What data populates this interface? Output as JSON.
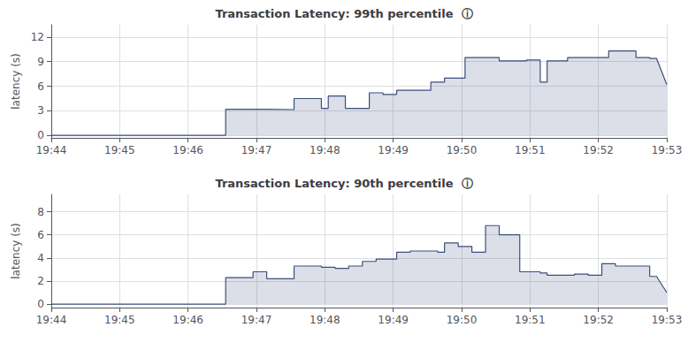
{
  "chart_data": [
    {
      "type": "area",
      "title": "Transaction Latency: 99th percentile  ⓘ",
      "ylabel": "latency (s)",
      "color": "#3b4f7c",
      "grid": true,
      "xlim": [
        0,
        9
      ],
      "xticks": [
        {
          "value": 0,
          "label": "19:44"
        },
        {
          "value": 1,
          "label": "19:45"
        },
        {
          "value": 2,
          "label": "19:46"
        },
        {
          "value": 3,
          "label": "19:47"
        },
        {
          "value": 4,
          "label": "19:48"
        },
        {
          "value": 5,
          "label": "19:49"
        },
        {
          "value": 6,
          "label": "19:50"
        },
        {
          "value": 7,
          "label": "19:51"
        },
        {
          "value": 8,
          "label": "19:52"
        },
        {
          "value": 9,
          "label": "19:53"
        }
      ],
      "ylim": [
        -0.3,
        13.5
      ],
      "yticks": [
        0,
        3,
        6,
        9,
        12
      ],
      "x": [
        0.0,
        1.0,
        2.0,
        2.0,
        2.55,
        2.55,
        3.0,
        3.0,
        3.15,
        3.15,
        3.55,
        3.55,
        3.75,
        3.75,
        3.95,
        3.95,
        4.05,
        4.05,
        4.15,
        4.15,
        4.3,
        4.3,
        4.55,
        4.55,
        4.65,
        4.65,
        4.75,
        4.75,
        4.85,
        4.85,
        5.05,
        5.05,
        5.15,
        5.15,
        5.55,
        5.55,
        5.75,
        5.75,
        5.9,
        5.9,
        6.05,
        6.05,
        6.2,
        6.2,
        6.55,
        6.55,
        6.75,
        6.75,
        6.85,
        6.85,
        6.95,
        6.95,
        7.15,
        7.15,
        7.25,
        7.25,
        7.45,
        7.45,
        7.55,
        7.55,
        7.65,
        7.65,
        7.75,
        7.75,
        7.85,
        7.85,
        8.05,
        8.05,
        8.15,
        8.15,
        8.25,
        8.25,
        8.55,
        8.55,
        8.75,
        8.75,
        8.85,
        8.85,
        9.0
      ],
      "values": [
        0.0,
        0.0,
        0.0,
        0.0,
        0.0,
        3.2,
        3.2,
        3.2,
        3.2,
        3.15,
        3.15,
        4.5,
        4.5,
        4.5,
        4.5,
        3.3,
        3.3,
        4.8,
        4.8,
        4.8,
        4.8,
        3.3,
        3.3,
        3.3,
        3.3,
        5.2,
        5.2,
        5.2,
        5.2,
        5.0,
        5.0,
        5.5,
        5.5,
        5.5,
        5.5,
        6.5,
        6.5,
        7.0,
        7.0,
        7.0,
        7.0,
        9.5,
        9.5,
        9.5,
        9.5,
        9.1,
        9.1,
        9.1,
        9.1,
        9.1,
        9.1,
        9.2,
        9.2,
        6.5,
        6.5,
        9.1,
        9.1,
        9.1,
        9.1,
        9.5,
        9.5,
        9.5,
        9.5,
        9.5,
        9.5,
        9.5,
        9.5,
        9.5,
        9.5,
        10.3,
        10.3,
        10.3,
        10.3,
        9.5,
        9.5,
        9.4,
        9.4,
        9.4,
        6.2
      ]
    },
    {
      "type": "area",
      "title": "Transaction Latency: 90th percentile  ⓘ",
      "ylabel": "latency (s)",
      "color": "#3b4f7c",
      "grid": true,
      "xlim": [
        0,
        9
      ],
      "xticks": [
        {
          "value": 0,
          "label": "19:44"
        },
        {
          "value": 1,
          "label": "19:45"
        },
        {
          "value": 2,
          "label": "19:46"
        },
        {
          "value": 3,
          "label": "19:47"
        },
        {
          "value": 4,
          "label": "19:48"
        },
        {
          "value": 5,
          "label": "19:49"
        },
        {
          "value": 6,
          "label": "19:50"
        },
        {
          "value": 7,
          "label": "19:51"
        },
        {
          "value": 8,
          "label": "19:52"
        },
        {
          "value": 9,
          "label": "19:53"
        }
      ],
      "ylim": [
        -0.3,
        9.5
      ],
      "yticks": [
        0,
        2,
        4,
        6,
        8
      ],
      "x": [
        0.0,
        1.0,
        2.0,
        2.0,
        2.55,
        2.55,
        2.95,
        2.95,
        3.05,
        3.05,
        3.15,
        3.15,
        3.25,
        3.25,
        3.45,
        3.45,
        3.55,
        3.55,
        3.65,
        3.65,
        3.75,
        3.75,
        3.95,
        3.95,
        4.05,
        4.05,
        4.15,
        4.15,
        4.25,
        4.25,
        4.35,
        4.35,
        4.45,
        4.45,
        4.55,
        4.55,
        4.65,
        4.65,
        4.75,
        4.75,
        4.85,
        4.85,
        5.05,
        5.05,
        5.15,
        5.15,
        5.25,
        5.25,
        5.55,
        5.55,
        5.65,
        5.65,
        5.75,
        5.75,
        5.85,
        5.85,
        5.95,
        5.95,
        6.05,
        6.05,
        6.15,
        6.15,
        6.25,
        6.25,
        6.35,
        6.35,
        6.45,
        6.45,
        6.55,
        6.55,
        6.75,
        6.75,
        6.85,
        6.85,
        6.95,
        6.95,
        7.05,
        7.05,
        7.15,
        7.15,
        7.25,
        7.25,
        7.35,
        7.35,
        7.55,
        7.55,
        7.65,
        7.65,
        7.75,
        7.75,
        7.85,
        7.85,
        7.95,
        7.95,
        8.05,
        8.05,
        8.15,
        8.15,
        8.25,
        8.25,
        8.55,
        8.55,
        8.75,
        8.75,
        8.85,
        8.85,
        9.0
      ],
      "values": [
        0.0,
        0.0,
        0.0,
        0.0,
        0.0,
        2.3,
        2.3,
        2.8,
        2.8,
        2.8,
        2.8,
        2.2,
        2.2,
        2.2,
        2.2,
        2.2,
        2.2,
        3.3,
        3.3,
        3.3,
        3.3,
        3.3,
        3.3,
        3.2,
        3.2,
        3.2,
        3.2,
        3.1,
        3.1,
        3.1,
        3.1,
        3.3,
        3.3,
        3.3,
        3.3,
        3.7,
        3.7,
        3.7,
        3.7,
        3.9,
        3.9,
        3.9,
        3.9,
        4.5,
        4.5,
        4.5,
        4.5,
        4.6,
        4.6,
        4.6,
        4.6,
        4.5,
        4.5,
        5.3,
        5.3,
        5.3,
        5.3,
        5.0,
        5.0,
        5.0,
        5.0,
        4.5,
        4.5,
        4.5,
        4.5,
        6.8,
        6.8,
        6.8,
        6.8,
        6.0,
        6.0,
        6.0,
        6.0,
        2.8,
        2.8,
        2.8,
        2.8,
        2.8,
        2.8,
        2.7,
        2.7,
        2.5,
        2.5,
        2.5,
        2.5,
        2.5,
        2.5,
        2.6,
        2.6,
        2.6,
        2.6,
        2.5,
        2.5,
        2.5,
        2.5,
        3.5,
        3.5,
        3.5,
        3.5,
        3.3,
        3.3,
        3.3,
        3.3,
        2.4,
        2.4,
        2.4,
        1.0
      ]
    }
  ]
}
